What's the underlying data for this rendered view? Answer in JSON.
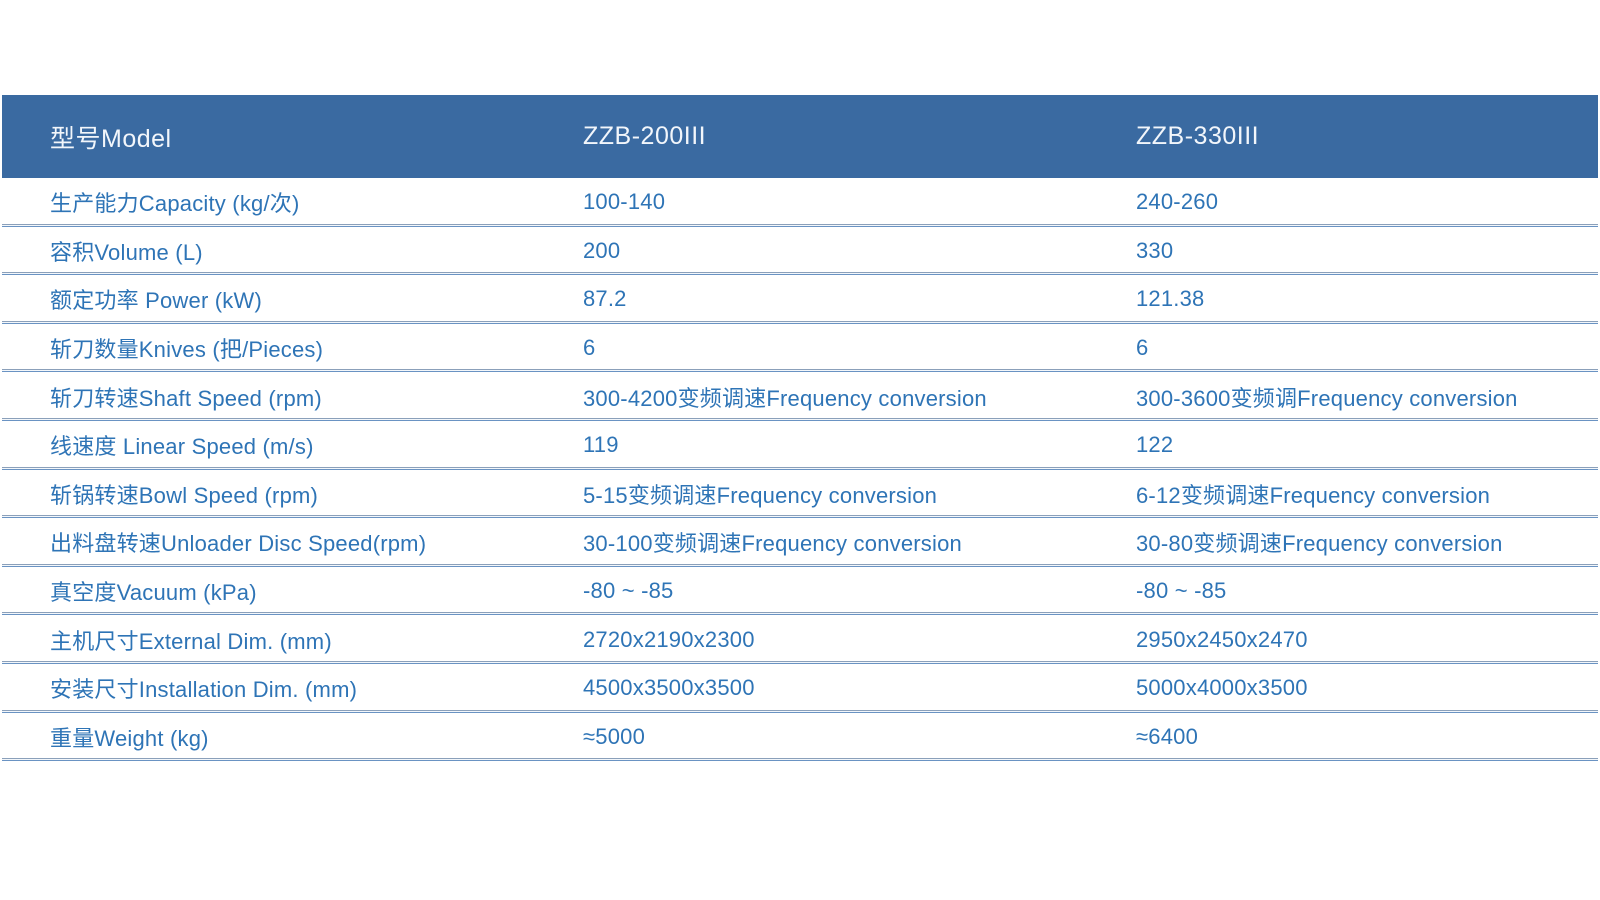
{
  "colors": {
    "header_bg": "#3a6aa1",
    "header_text": "#f2f6fb",
    "body_text": "#2e74b6",
    "divider_light": "#8ba0ba",
    "divider_dark": "#6a93c3",
    "page_bg": "#ffffff"
  },
  "table": {
    "header": {
      "col0": "型号Model",
      "col1": "ZZB-200III",
      "col2": "ZZB-330III"
    },
    "rows": [
      {
        "label": "生产能力Capacity (kg/次)",
        "v200": "100-140",
        "v330": "240-260"
      },
      {
        "label": "容积Volume (L)",
        "v200": "200",
        "v330": "330"
      },
      {
        "label": "额定功率 Power (kW)",
        "v200": "87.2",
        "v330": "121.38"
      },
      {
        "label": "斩刀数量Knives (把/Pieces)",
        "v200": "6",
        "v330": "6"
      },
      {
        "label": "斩刀转速Shaft Speed (rpm)",
        "v200": "300-4200变频调速Frequency conversion",
        "v330": "300-3600变频调Frequency conversion"
      },
      {
        "label": "线速度 Linear Speed (m/s)",
        "v200": "119",
        "v330": "122"
      },
      {
        "label": "斩锅转速Bowl Speed (rpm)",
        "v200": "5-15变频调速Frequency conversion",
        "v330": "6-12变频调速Frequency conversion"
      },
      {
        "label": "出料盘转速Unloader Disc Speed(rpm)",
        "v200": "30-100变频调速Frequency conversion",
        "v330": "30-80变频调速Frequency conversion"
      },
      {
        "label": "真空度Vacuum (kPa)",
        "v200": "-80 ~ -85",
        "v330": "-80 ~ -85"
      },
      {
        "label": "主机尺寸External Dim. (mm)",
        "v200": "2720x2190x2300",
        "v330": "2950x2450x2470"
      },
      {
        "label": "安装尺寸Installation Dim. (mm)",
        "v200": "4500x3500x3500",
        "v330": "5000x4000x3500"
      },
      {
        "label": "重量Weight (kg)",
        "v200": "≈5000",
        "v330": "≈6400"
      }
    ]
  }
}
